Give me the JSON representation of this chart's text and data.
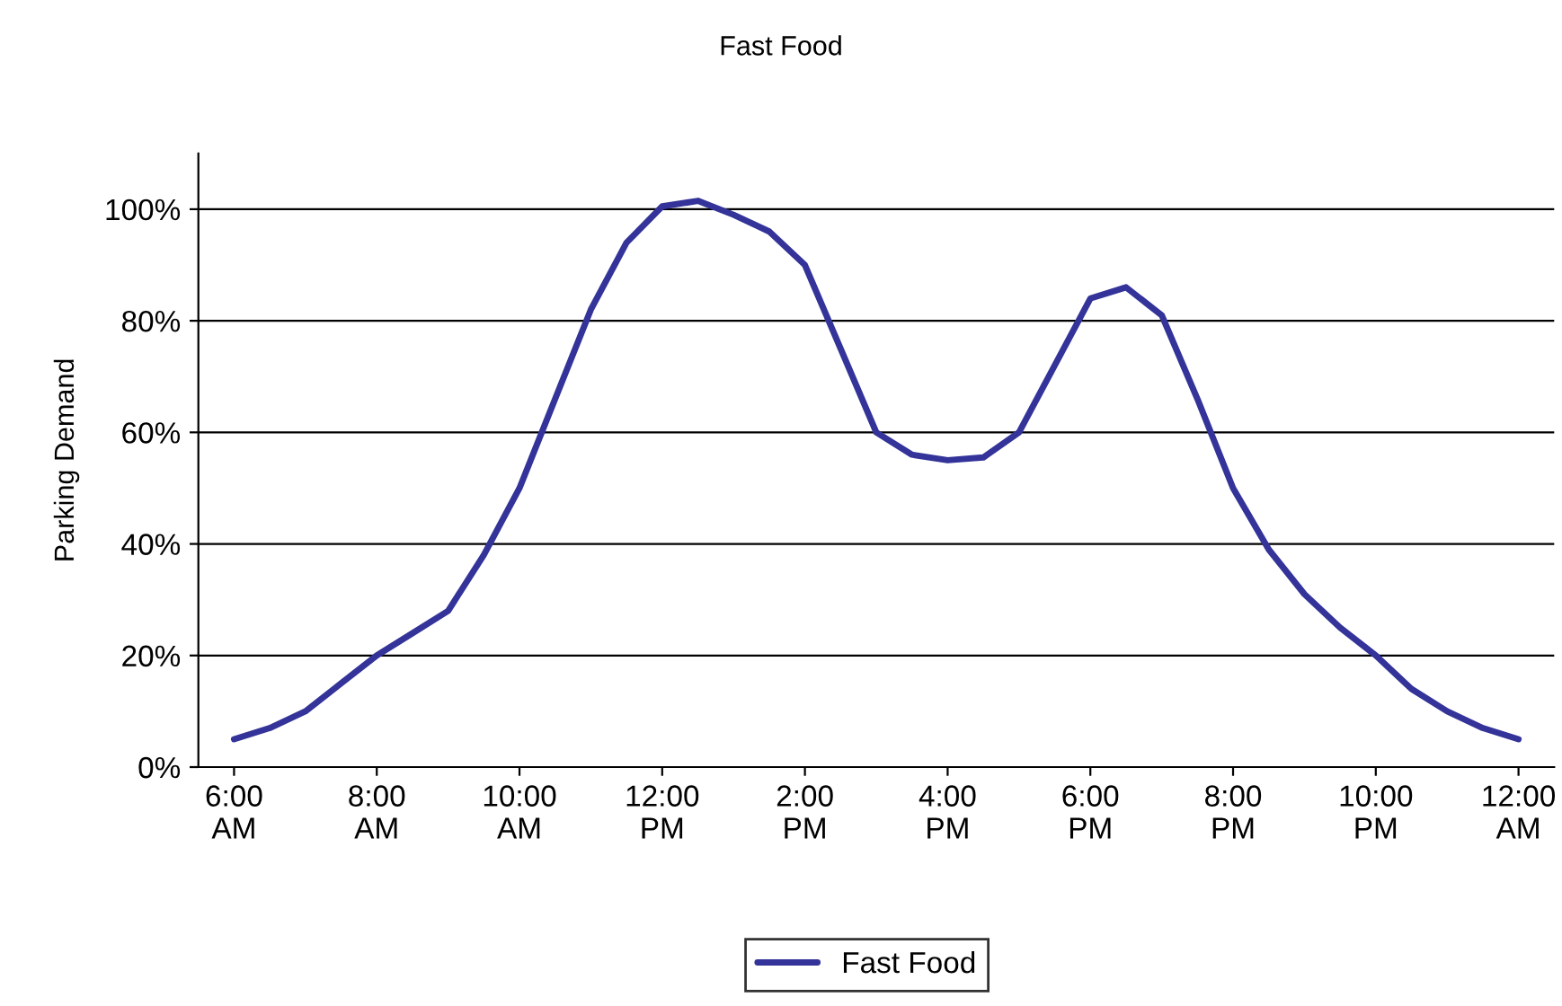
{
  "chart_data": {
    "type": "line",
    "title": "Fast Food",
    "ylabel": "Parking Demand",
    "x": [
      6,
      6.5,
      7,
      7.5,
      8,
      8.5,
      9,
      9.5,
      10,
      10.5,
      11,
      11.5,
      12,
      12.5,
      13,
      13.5,
      14,
      14.5,
      15,
      15.5,
      16,
      16.5,
      17,
      17.5,
      18,
      18.5,
      19,
      19.5,
      20,
      20.5,
      21,
      21.5,
      22,
      22.5,
      23,
      23.5,
      24
    ],
    "series": [
      {
        "name": "Fast Food",
        "color": "#333399",
        "values": [
          5,
          7,
          10,
          15,
          20,
          24,
          28,
          38,
          50,
          66,
          82,
          94,
          100.5,
          101.5,
          99,
          96,
          90,
          75,
          60,
          56,
          55,
          55.5,
          60,
          72,
          84,
          86,
          81,
          66,
          50,
          39,
          31,
          25,
          20,
          14,
          10,
          7,
          5
        ]
      }
    ],
    "xlim": [
      5.5,
      24.5
    ],
    "xticks": [
      {
        "value": 6,
        "label": "6:00\nAM"
      },
      {
        "value": 8,
        "label": "8:00\nAM"
      },
      {
        "value": 10,
        "label": "10:00\nAM"
      },
      {
        "value": 12,
        "label": "12:00\nPM"
      },
      {
        "value": 14,
        "label": "2:00\nPM"
      },
      {
        "value": 16,
        "label": "4:00\nPM"
      },
      {
        "value": 18,
        "label": "6:00\nPM"
      },
      {
        "value": 20,
        "label": "8:00\nPM"
      },
      {
        "value": 22,
        "label": "10:00\nPM"
      },
      {
        "value": 24,
        "label": "12:00\nAM"
      }
    ],
    "ylim": [
      0,
      110
    ],
    "yticks": [
      {
        "value": 0,
        "label": "0%"
      },
      {
        "value": 20,
        "label": "20%"
      },
      {
        "value": 40,
        "label": "40%"
      },
      {
        "value": 60,
        "label": "60%"
      },
      {
        "value": 80,
        "label": "80%"
      },
      {
        "value": 100,
        "label": "100%"
      }
    ],
    "grid": "y",
    "legend": "bottom",
    "marker": "none",
    "line_style": "solid"
  }
}
